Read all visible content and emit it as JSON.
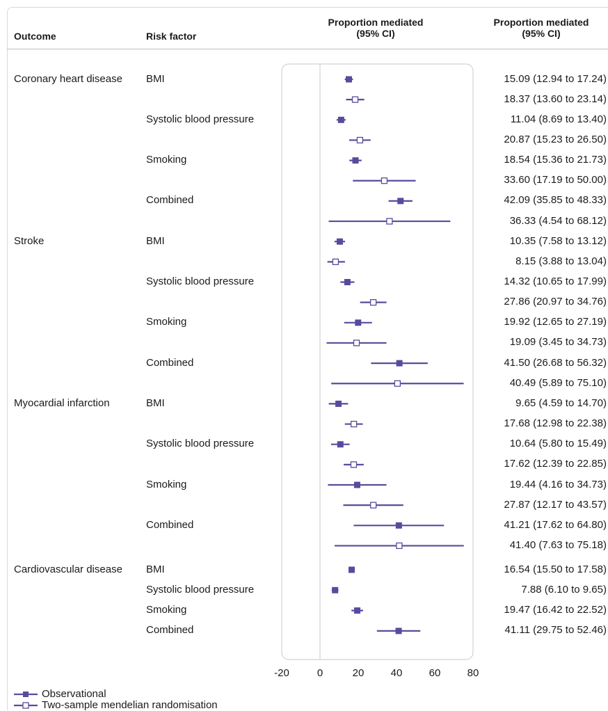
{
  "headers": {
    "outcome": "Outcome",
    "risk_factor": "Risk factor",
    "plot_line1": "Proportion mediated",
    "plot_line2": "(95% CI)",
    "ci_line1": "Proportion mediated",
    "ci_line2": "(95% CI)"
  },
  "colors": {
    "accent": "#5a4a9c",
    "frame": "#c8c8c8",
    "zero_line": "#c8c8c8"
  },
  "legend": {
    "observational": "Observational",
    "mendelian": "Two-sample mendelian randomisation"
  },
  "chart_data": {
    "type": "forest",
    "xlim": [
      -20,
      80
    ],
    "xticks": [
      "-20",
      "0",
      "20",
      "40",
      "60",
      "80"
    ],
    "xtick_values": [
      -20,
      0,
      20,
      40,
      60,
      80
    ],
    "series": [
      {
        "name": "Observational",
        "marker": "filled-square"
      },
      {
        "name": "Two-sample mendelian randomisation",
        "marker": "open-square"
      }
    ],
    "rows": [
      {
        "outcome": "Coronary heart disease",
        "factor": "BMI",
        "method": "obs",
        "est": 15.09,
        "lo": 12.94,
        "hi": 17.24,
        "label": "15.09 (12.94 to 17.24)"
      },
      {
        "outcome": "",
        "factor": "",
        "method": "mr",
        "est": 18.37,
        "lo": 13.6,
        "hi": 23.14,
        "label": "18.37 (13.60 to 23.14)"
      },
      {
        "outcome": "",
        "factor": "Systolic blood pressure",
        "method": "obs",
        "est": 11.04,
        "lo": 8.69,
        "hi": 13.4,
        "label": "11.04 (8.69 to 13.40)"
      },
      {
        "outcome": "",
        "factor": "",
        "method": "mr",
        "est": 20.87,
        "lo": 15.23,
        "hi": 26.5,
        "label": "20.87 (15.23 to 26.50)"
      },
      {
        "outcome": "",
        "factor": "Smoking",
        "method": "obs",
        "est": 18.54,
        "lo": 15.36,
        "hi": 21.73,
        "label": "18.54 (15.36 to 21.73)"
      },
      {
        "outcome": "",
        "factor": "",
        "method": "mr",
        "est": 33.6,
        "lo": 17.19,
        "hi": 50.0,
        "label": "33.60 (17.19 to 50.00)"
      },
      {
        "outcome": "",
        "factor": "Combined",
        "method": "obs",
        "est": 42.09,
        "lo": 35.85,
        "hi": 48.33,
        "label": "42.09 (35.85 to 48.33)"
      },
      {
        "outcome": "",
        "factor": "",
        "method": "mr",
        "est": 36.33,
        "lo": 4.54,
        "hi": 68.12,
        "label": "36.33 (4.54 to 68.12)"
      },
      {
        "outcome": "Stroke",
        "factor": "BMI",
        "method": "obs",
        "est": 10.35,
        "lo": 7.58,
        "hi": 13.12,
        "label": "10.35 (7.58 to 13.12)"
      },
      {
        "outcome": "",
        "factor": "",
        "method": "mr",
        "est": 8.15,
        "lo": 3.88,
        "hi": 13.04,
        "label": "8.15 (3.88 to 13.04)"
      },
      {
        "outcome": "",
        "factor": "Systolic blood pressure",
        "method": "obs",
        "est": 14.32,
        "lo": 10.65,
        "hi": 17.99,
        "label": "14.32 (10.65 to 17.99)"
      },
      {
        "outcome": "",
        "factor": "",
        "method": "mr",
        "est": 27.86,
        "lo": 20.97,
        "hi": 34.76,
        "label": "27.86 (20.97 to 34.76)"
      },
      {
        "outcome": "",
        "factor": "Smoking",
        "method": "obs",
        "est": 19.92,
        "lo": 12.65,
        "hi": 27.19,
        "label": "19.92 (12.65 to 27.19)"
      },
      {
        "outcome": "",
        "factor": "",
        "method": "mr",
        "est": 19.09,
        "lo": 3.45,
        "hi": 34.73,
        "label": "19.09 (3.45 to 34.73)"
      },
      {
        "outcome": "",
        "factor": "Combined",
        "method": "obs",
        "est": 41.5,
        "lo": 26.68,
        "hi": 56.32,
        "label": "41.50 (26.68 to 56.32)"
      },
      {
        "outcome": "",
        "factor": "",
        "method": "mr",
        "est": 40.49,
        "lo": 5.89,
        "hi": 75.1,
        "label": "40.49 (5.89 to 75.10)"
      },
      {
        "outcome": "Myocardial infarction",
        "factor": "BMI",
        "method": "obs",
        "est": 9.65,
        "lo": 4.59,
        "hi": 14.7,
        "label": "9.65 (4.59 to 14.70)"
      },
      {
        "outcome": "",
        "factor": "",
        "method": "mr",
        "est": 17.68,
        "lo": 12.98,
        "hi": 22.38,
        "label": "17.68 (12.98 to 22.38)"
      },
      {
        "outcome": "",
        "factor": "Systolic blood pressure",
        "method": "obs",
        "est": 10.64,
        "lo": 5.8,
        "hi": 15.49,
        "label": "10.64 (5.80 to 15.49)"
      },
      {
        "outcome": "",
        "factor": "",
        "method": "mr",
        "est": 17.62,
        "lo": 12.39,
        "hi": 22.85,
        "label": "17.62 (12.39 to 22.85)"
      },
      {
        "outcome": "",
        "factor": "Smoking",
        "method": "obs",
        "est": 19.44,
        "lo": 4.16,
        "hi": 34.73,
        "label": "19.44 (4.16 to 34.73)"
      },
      {
        "outcome": "",
        "factor": "",
        "method": "mr",
        "est": 27.87,
        "lo": 12.17,
        "hi": 43.57,
        "label": "27.87 (12.17 to 43.57)"
      },
      {
        "outcome": "",
        "factor": "Combined",
        "method": "obs",
        "est": 41.21,
        "lo": 17.62,
        "hi": 64.8,
        "label": "41.21 (17.62 to 64.80)"
      },
      {
        "outcome": "",
        "factor": "",
        "method": "mr",
        "est": 41.4,
        "lo": 7.63,
        "hi": 75.18,
        "label": "41.40 (7.63 to 75.18)"
      },
      {
        "outcome": "Cardiovascular disease",
        "factor": "BMI",
        "method": "obs",
        "est": 16.54,
        "lo": 15.5,
        "hi": 17.58,
        "label": "16.54 (15.50 to 17.58)"
      },
      {
        "outcome": "",
        "factor": "Systolic blood pressure",
        "method": "obs",
        "est": 7.88,
        "lo": 6.1,
        "hi": 9.65,
        "label": "7.88 (6.10 to 9.65)"
      },
      {
        "outcome": "",
        "factor": "Smoking",
        "method": "obs",
        "est": 19.47,
        "lo": 16.42,
        "hi": 22.52,
        "label": "19.47 (16.42 to 22.52)"
      },
      {
        "outcome": "",
        "factor": "Combined",
        "method": "obs",
        "est": 41.11,
        "lo": 29.75,
        "hi": 52.46,
        "label": "41.11 (29.75 to 52.46)"
      }
    ]
  }
}
